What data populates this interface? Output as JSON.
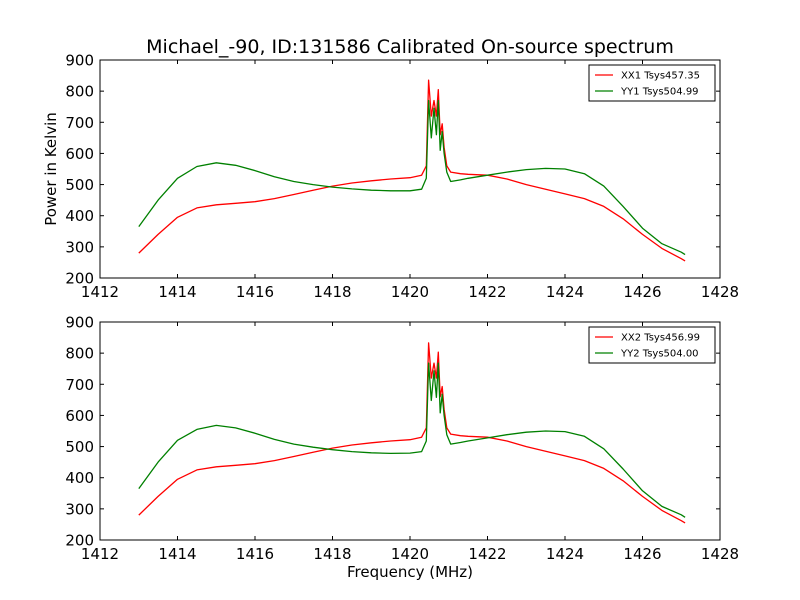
{
  "title": "Michael_-90, ID:131586 Calibrated On-source spectrum",
  "colors": {
    "xx": "#ff0000",
    "yy": "#008000"
  },
  "chart_data": [
    {
      "type": "line",
      "ylabel": "Power in Kelvin",
      "xlabel": "",
      "xlim": [
        1412,
        1428
      ],
      "ylim": [
        200,
        900
      ],
      "xticks": [
        1412,
        1414,
        1416,
        1418,
        1420,
        1422,
        1424,
        1426,
        1428
      ],
      "yticks": [
        200,
        300,
        400,
        500,
        600,
        700,
        800,
        900
      ],
      "grid": false,
      "legend": "top-right",
      "series": [
        {
          "name": "XX1 Tsys457.35",
          "color": "#ff0000",
          "x": [
            1413.0,
            1413.5,
            1414.0,
            1414.5,
            1415.0,
            1415.5,
            1416.0,
            1416.5,
            1417.0,
            1417.5,
            1418.0,
            1418.5,
            1419.0,
            1419.5,
            1420.0,
            1420.3,
            1420.42,
            1420.48,
            1420.55,
            1420.62,
            1420.68,
            1420.73,
            1420.78,
            1420.83,
            1420.88,
            1420.95,
            1421.05,
            1421.3,
            1421.5,
            1422.0,
            1422.5,
            1423.0,
            1423.5,
            1424.0,
            1424.5,
            1425.0,
            1425.5,
            1426.0,
            1426.5,
            1427.0,
            1427.1
          ],
          "values": [
            280,
            340,
            395,
            425,
            435,
            440,
            445,
            455,
            468,
            482,
            495,
            505,
            512,
            518,
            522,
            530,
            560,
            835,
            720,
            770,
            720,
            805,
            660,
            695,
            620,
            560,
            540,
            535,
            533,
            530,
            518,
            500,
            485,
            470,
            455,
            430,
            390,
            340,
            295,
            262,
            255
          ]
        },
        {
          "name": "YY1 Tsys504.99",
          "color": "#008000",
          "x": [
            1413.0,
            1413.5,
            1414.0,
            1414.5,
            1415.0,
            1415.5,
            1416.0,
            1416.5,
            1417.0,
            1417.5,
            1418.0,
            1418.5,
            1419.0,
            1419.5,
            1420.0,
            1420.3,
            1420.42,
            1420.48,
            1420.55,
            1420.62,
            1420.68,
            1420.73,
            1420.78,
            1420.83,
            1420.88,
            1420.95,
            1421.05,
            1421.3,
            1421.5,
            1422.0,
            1422.5,
            1423.0,
            1423.5,
            1424.0,
            1424.5,
            1425.0,
            1425.5,
            1426.0,
            1426.5,
            1427.0,
            1427.1
          ],
          "values": [
            365,
            450,
            520,
            558,
            570,
            562,
            545,
            525,
            510,
            500,
            492,
            486,
            482,
            480,
            480,
            485,
            520,
            770,
            650,
            745,
            660,
            770,
            610,
            670,
            600,
            540,
            510,
            515,
            520,
            530,
            540,
            548,
            552,
            550,
            535,
            495,
            430,
            360,
            310,
            283,
            275
          ]
        }
      ]
    },
    {
      "type": "line",
      "ylabel": "",
      "xlabel": "Frequency (MHz)",
      "xlim": [
        1412,
        1428
      ],
      "ylim": [
        200,
        900
      ],
      "xticks": [
        1412,
        1414,
        1416,
        1418,
        1420,
        1422,
        1424,
        1426,
        1428
      ],
      "yticks": [
        200,
        300,
        400,
        500,
        600,
        700,
        800,
        900
      ],
      "grid": false,
      "legend": "top-right",
      "series": [
        {
          "name": "XX2 Tsys456.99",
          "color": "#ff0000",
          "x": [
            1413.0,
            1413.5,
            1414.0,
            1414.5,
            1415.0,
            1415.5,
            1416.0,
            1416.5,
            1417.0,
            1417.5,
            1418.0,
            1418.5,
            1419.0,
            1419.5,
            1420.0,
            1420.3,
            1420.42,
            1420.48,
            1420.55,
            1420.62,
            1420.68,
            1420.73,
            1420.78,
            1420.83,
            1420.88,
            1420.95,
            1421.05,
            1421.3,
            1421.5,
            1422.0,
            1422.5,
            1423.0,
            1423.5,
            1424.0,
            1424.5,
            1425.0,
            1425.5,
            1426.0,
            1426.5,
            1427.0,
            1427.1
          ],
          "values": [
            280,
            340,
            395,
            425,
            435,
            440,
            445,
            455,
            468,
            482,
            495,
            505,
            512,
            518,
            522,
            530,
            560,
            833,
            720,
            768,
            720,
            803,
            660,
            693,
            620,
            560,
            540,
            535,
            533,
            530,
            518,
            500,
            485,
            470,
            455,
            430,
            390,
            340,
            295,
            262,
            255
          ]
        },
        {
          "name": "YY2 Tsys504.00",
          "color": "#008000",
          "x": [
            1413.0,
            1413.5,
            1414.0,
            1414.5,
            1415.0,
            1415.5,
            1416.0,
            1416.5,
            1417.0,
            1417.5,
            1418.0,
            1418.5,
            1419.0,
            1419.5,
            1420.0,
            1420.3,
            1420.42,
            1420.48,
            1420.55,
            1420.62,
            1420.68,
            1420.73,
            1420.78,
            1420.83,
            1420.88,
            1420.95,
            1421.05,
            1421.3,
            1421.5,
            1422.0,
            1422.5,
            1423.0,
            1423.5,
            1424.0,
            1424.5,
            1425.0,
            1425.5,
            1426.0,
            1426.5,
            1427.0,
            1427.1
          ],
          "values": [
            365,
            450,
            520,
            555,
            568,
            560,
            543,
            523,
            508,
            498,
            490,
            484,
            480,
            478,
            479,
            484,
            518,
            768,
            648,
            743,
            658,
            768,
            608,
            668,
            600,
            538,
            508,
            513,
            518,
            528,
            538,
            546,
            550,
            548,
            533,
            493,
            428,
            358,
            308,
            281,
            273
          ]
        }
      ]
    }
  ]
}
